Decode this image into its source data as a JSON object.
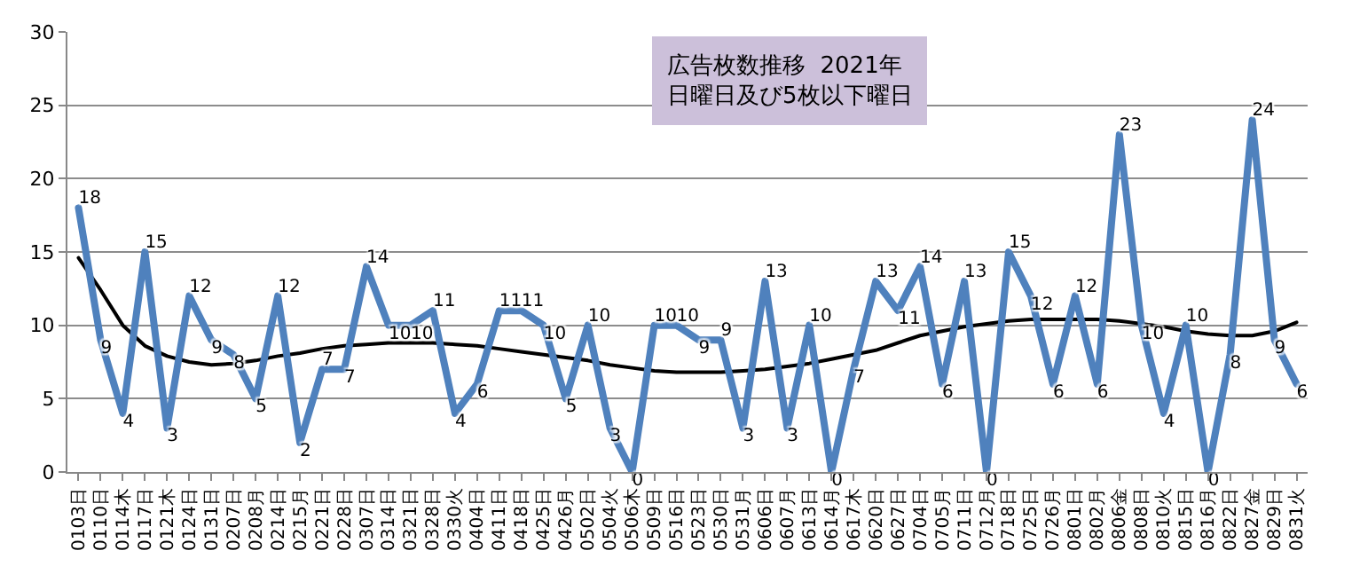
{
  "chart_data": {
    "type": "line",
    "categories": [
      "0103日",
      "0110日",
      "0114木",
      "0117日",
      "0121木",
      "0124日",
      "0131日",
      "0207日",
      "0208月",
      "0214日",
      "0215月",
      "0221日",
      "0228日",
      "0307日",
      "0314日",
      "0321日",
      "0328日",
      "0330火",
      "0404日",
      "0411日",
      "0418日",
      "0425日",
      "0426月",
      "0502日",
      "0504火",
      "0506木",
      "0509日",
      "0516日",
      "0523日",
      "0530日",
      "0531月",
      "0606日",
      "0607月",
      "0613日",
      "0614月",
      "0617木",
      "0620日",
      "0627日",
      "0704日",
      "0705月",
      "0711日",
      "0712月",
      "0718日",
      "0725日",
      "0726月",
      "0801日",
      "0802月",
      "0806金",
      "0808日",
      "0810火",
      "0815日",
      "0816月",
      "0822日",
      "0827金",
      "0829日",
      "0831火"
    ],
    "series": [
      {
        "color": "#4f81bd",
        "values": [
          18,
          9,
          4,
          15,
          3,
          12,
          9,
          8,
          5,
          12,
          2,
          7,
          7,
          14,
          10,
          10,
          11,
          4,
          6,
          11,
          11,
          10,
          5,
          10,
          3,
          0,
          10,
          10,
          9,
          9,
          3,
          13,
          3,
          10,
          0,
          7,
          13,
          11,
          14,
          6,
          13,
          0,
          15,
          12,
          6,
          12,
          6,
          23,
          10,
          4,
          10,
          0,
          8,
          24,
          9,
          6
        ],
        "value_labels": [
          "18",
          "9",
          "4",
          "15",
          "3",
          "12",
          "9",
          "8",
          "5",
          "12",
          "2",
          "7",
          "7",
          "14",
          "10",
          "10",
          "11",
          "4",
          "6",
          "11",
          "11",
          "10",
          "5",
          "10",
          "3",
          "0",
          "10",
          "10",
          "9",
          "9",
          "3",
          "13",
          "3",
          "10",
          "0",
          "7",
          "13",
          "11",
          "14",
          "6",
          "13",
          "0",
          "15",
          "12",
          "6",
          "12",
          "6",
          "23",
          "10",
          "4",
          "10",
          "0",
          "8",
          "24",
          "9",
          "6"
        ]
      },
      {
        "color": "#000000",
        "values": [
          14.6,
          12.4,
          10.0,
          8.6,
          7.9,
          7.5,
          7.3,
          7.4,
          7.6,
          7.9,
          8.1,
          8.4,
          8.6,
          8.7,
          8.8,
          8.8,
          8.8,
          8.7,
          8.6,
          8.4,
          8.2,
          8.0,
          7.8,
          7.6,
          7.3,
          7.1,
          6.9,
          6.8,
          6.8,
          6.8,
          6.9,
          7.0,
          7.2,
          7.4,
          7.7,
          8.0,
          8.3,
          8.8,
          9.3,
          9.6,
          9.9,
          10.1,
          10.3,
          10.4,
          10.4,
          10.4,
          10.4,
          10.3,
          10.1,
          9.9,
          9.6,
          9.4,
          9.3,
          9.3,
          9.6,
          10.2
        ]
      }
    ],
    "ylim": [
      0,
      30
    ],
    "yticks": [
      0,
      5,
      10,
      15,
      20,
      25,
      30
    ],
    "grid": "y",
    "marker": "none",
    "line_style": "solid",
    "annotations": [
      "広告枚数推移  2021年",
      "日曜日及び5枚以下曜日"
    ]
  }
}
